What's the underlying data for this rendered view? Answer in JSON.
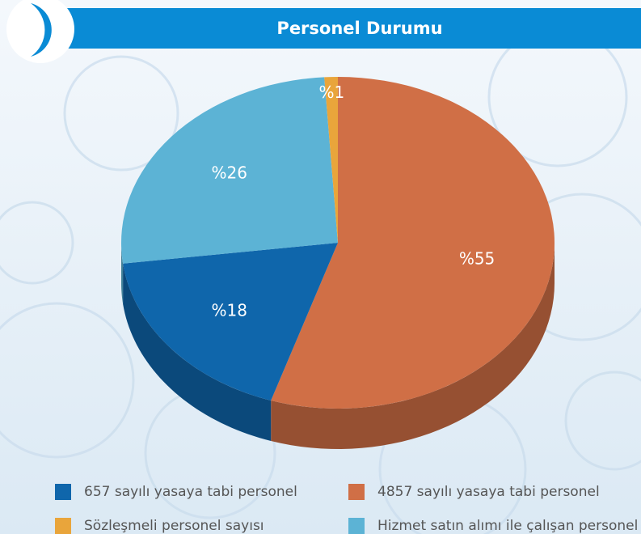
{
  "chart_data": {
    "type": "pie3d",
    "title": "Personel Durumu",
    "categories": [
      "657 sayılı yasaya tabi personel",
      "4857 sayılı yasaya tabi personel",
      "Sözleşmeli personel sayısı",
      "Hizmet satın alımı ile çalışan personel"
    ],
    "values": [
      18,
      55,
      1,
      26
    ],
    "value_labels": [
      "%18",
      "%55",
      "%1",
      "%26"
    ],
    "colors": [
      "#0f66ab",
      "#d06f46",
      "#e9a53b",
      "#5cb3d5"
    ]
  }
}
